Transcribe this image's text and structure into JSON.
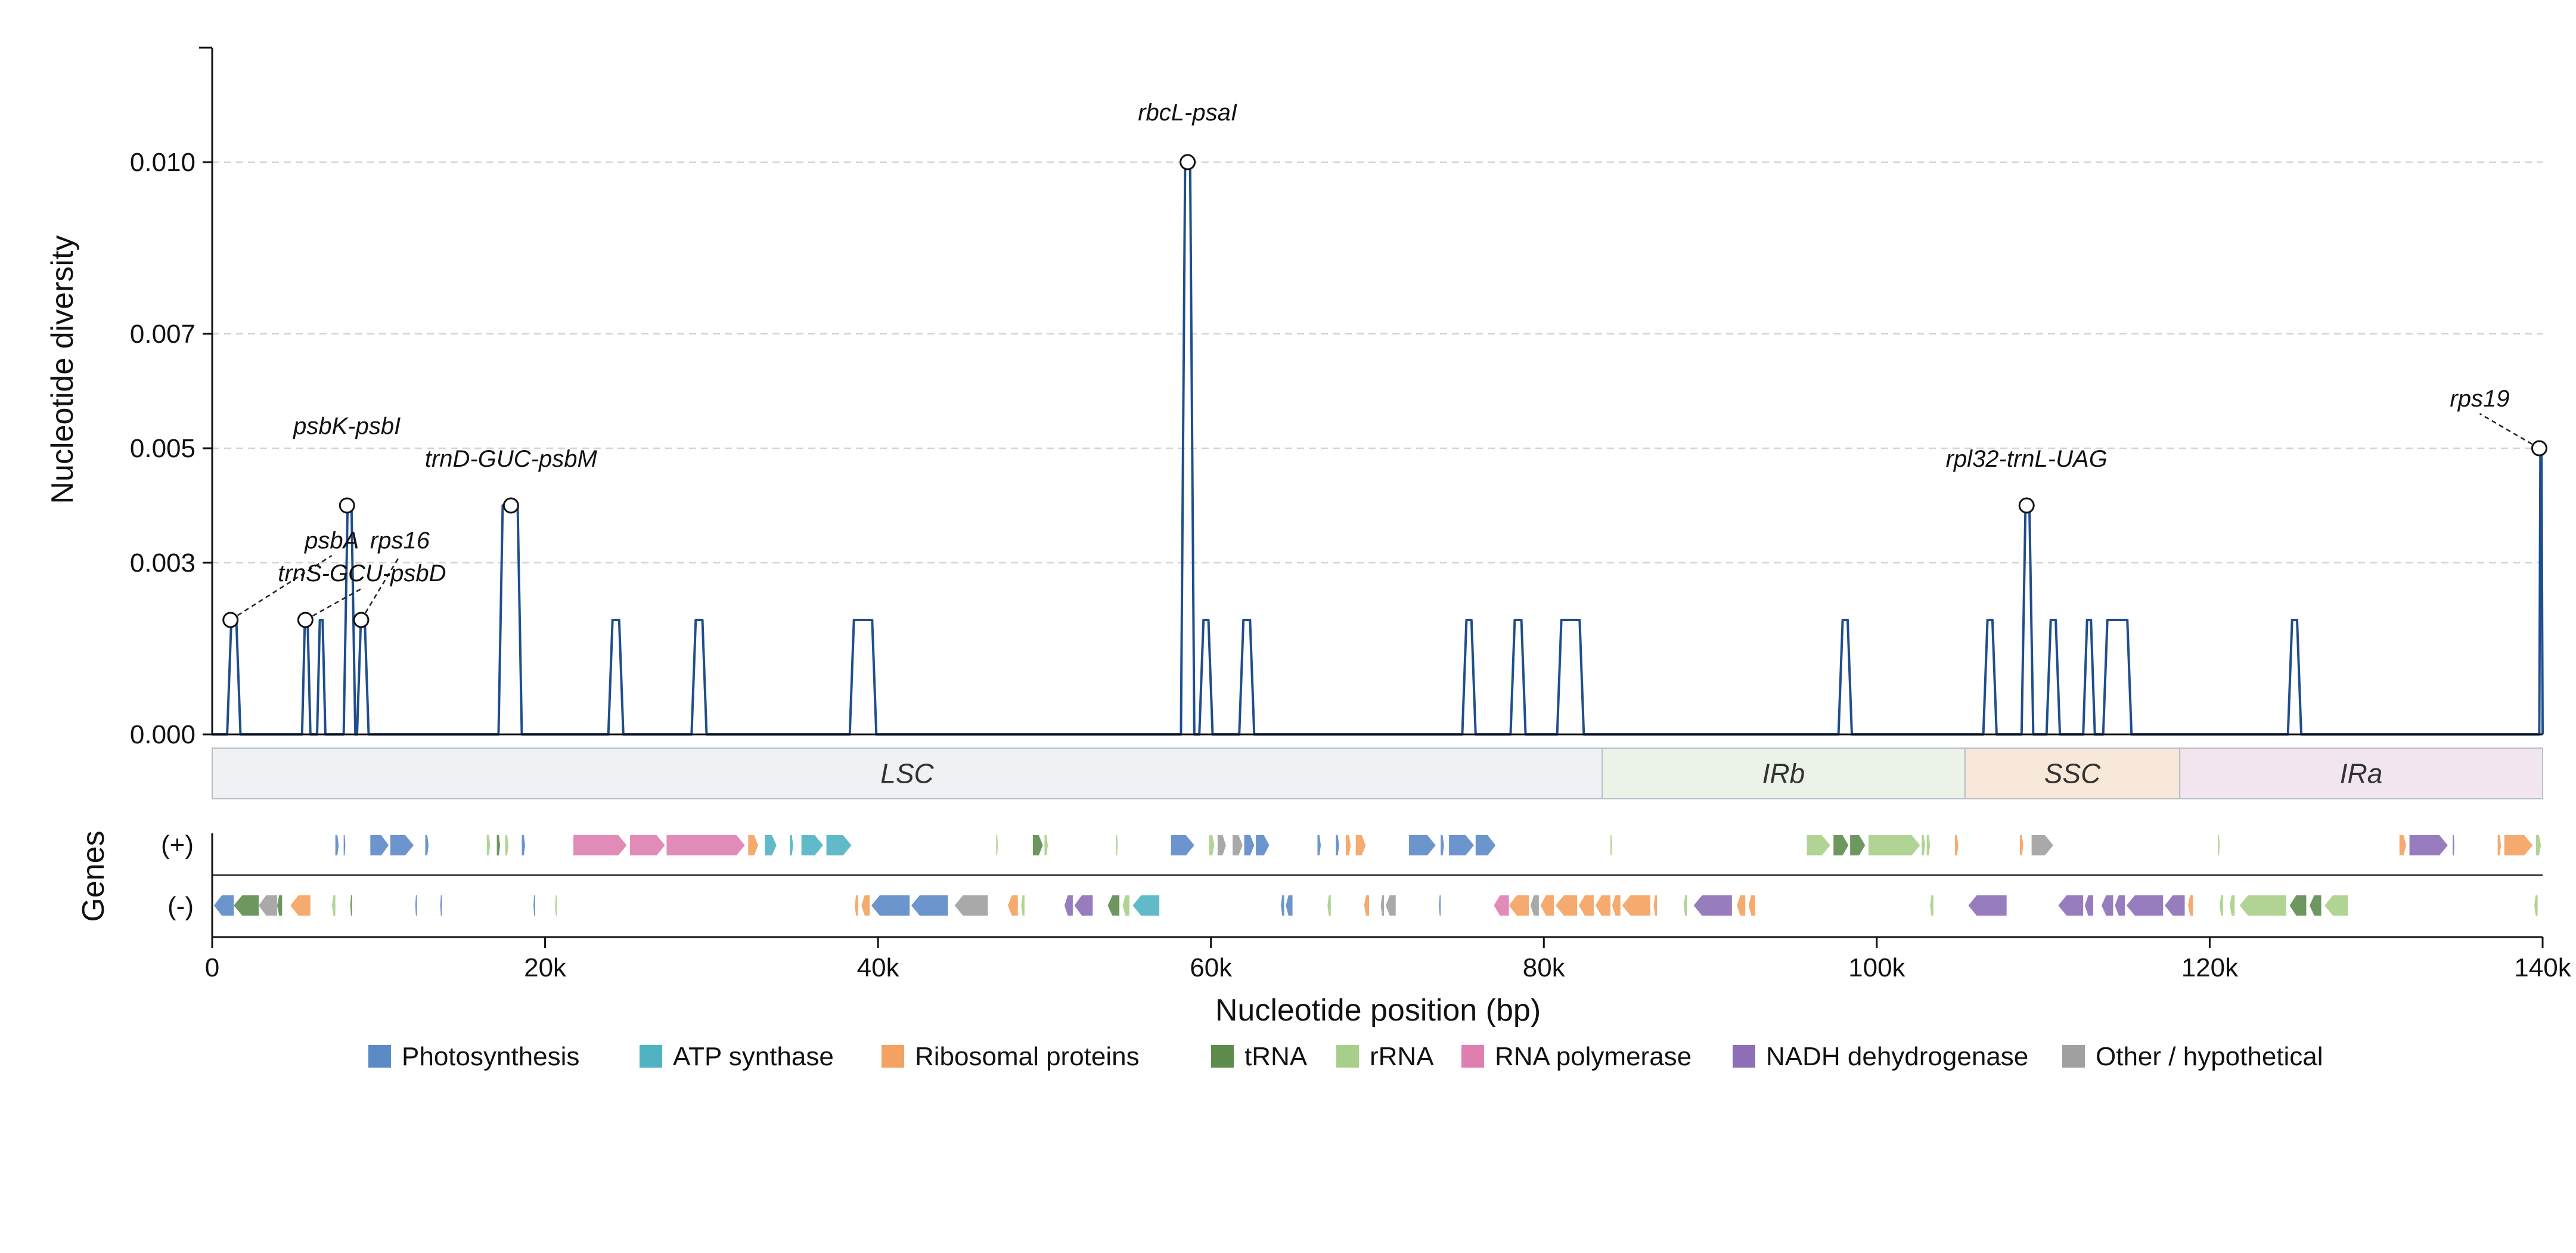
{
  "chart_data": {
    "type": "line",
    "title": "",
    "ylabel": "Nucleotide diversity",
    "xlabel": "Nucleotide position (bp)",
    "genes_label": "Genes",
    "strand_plus_label": "(+)",
    "strand_minus_label": "(-)",
    "xlim": [
      0,
      140000
    ],
    "ylim": [
      0,
      0.012
    ],
    "yticks": [
      {
        "value": 0.0,
        "label": "0.000"
      },
      {
        "value": 0.003,
        "label": "0.003"
      },
      {
        "value": 0.005,
        "label": "0.005"
      },
      {
        "value": 0.007,
        "label": "0.007"
      },
      {
        "value": 0.01,
        "label": "0.010"
      }
    ],
    "xticks": [
      {
        "value": 0,
        "label": "0"
      },
      {
        "value": 20000,
        "label": "20k"
      },
      {
        "value": 40000,
        "label": "40k"
      },
      {
        "value": 60000,
        "label": "60k"
      },
      {
        "value": 80000,
        "label": "80k"
      },
      {
        "value": 100000,
        "label": "100k"
      },
      {
        "value": 120000,
        "label": "120k"
      },
      {
        "value": 140000,
        "label": "140k"
      }
    ],
    "grid": "horizontal dashed",
    "line_color": "#1f4e8c",
    "peaks": [
      {
        "start": 900,
        "end": 1700,
        "value": 0.002
      },
      {
        "start": 5400,
        "end": 5900,
        "value": 0.002
      },
      {
        "start": 6300,
        "end": 6800,
        "value": 0.002
      },
      {
        "start": 7900,
        "end": 8600,
        "value": 0.004
      },
      {
        "start": 8700,
        "end": 9400,
        "value": 0.002
      },
      {
        "start": 17200,
        "end": 18600,
        "value": 0.004
      },
      {
        "start": 23800,
        "end": 24700,
        "value": 0.002
      },
      {
        "start": 28800,
        "end": 29700,
        "value": 0.002
      },
      {
        "start": 38300,
        "end": 39900,
        "value": 0.002
      },
      {
        "start": 58200,
        "end": 59000,
        "value": 0.01
      },
      {
        "start": 59300,
        "end": 60100,
        "value": 0.002
      },
      {
        "start": 61700,
        "end": 62600,
        "value": 0.002
      },
      {
        "start": 75100,
        "end": 75900,
        "value": 0.002
      },
      {
        "start": 78000,
        "end": 78900,
        "value": 0.002
      },
      {
        "start": 80800,
        "end": 82400,
        "value": 0.002
      },
      {
        "start": 97700,
        "end": 98500,
        "value": 0.002
      },
      {
        "start": 106400,
        "end": 107200,
        "value": 0.002
      },
      {
        "start": 108700,
        "end": 109400,
        "value": 0.004
      },
      {
        "start": 110200,
        "end": 111000,
        "value": 0.002
      },
      {
        "start": 112400,
        "end": 113100,
        "value": 0.002
      },
      {
        "start": 113600,
        "end": 115300,
        "value": 0.002
      },
      {
        "start": 124700,
        "end": 125500,
        "value": 0.002
      },
      {
        "start": 139800,
        "end": 140000,
        "value": 0.005
      }
    ],
    "annotations": [
      {
        "label": "rbcL-psaI",
        "x": 58600,
        "y": 0.01,
        "dx": 0,
        "dy": -70
      },
      {
        "label": "psbK-psbI",
        "x": 8100,
        "y": 0.004,
        "dx": 0,
        "dy": -120
      },
      {
        "label": "trnD-GUC-psbM",
        "x": 17950,
        "y": 0.004,
        "dx": 0,
        "dy": -65
      },
      {
        "label": "psbA",
        "x": 1100,
        "y": 0.002,
        "dx": 170,
        "dy": -120,
        "leader": true
      },
      {
        "label": "trnS-GCU-psbD",
        "x": 5600,
        "y": 0.002,
        "dx": 95,
        "dy": -65,
        "leader": true
      },
      {
        "label": "rps16",
        "x": 8950,
        "y": 0.002,
        "dx": 65,
        "dy": -120,
        "leader": true
      },
      {
        "label": "rpl32-trnL-UAG",
        "x": 109000,
        "y": 0.004,
        "dx": 0,
        "dy": -65
      },
      {
        "label": "rps19",
        "x": 139800,
        "y": 0.005,
        "dx": -100,
        "dy": -70,
        "leader": true
      }
    ],
    "regions": [
      {
        "name": "LSC",
        "start": 0,
        "end": 83500,
        "color": "#eef2f5"
      },
      {
        "name": "IRb",
        "start": 83500,
        "end": 105300,
        "color": "#ebf2e8"
      },
      {
        "name": "SSC",
        "start": 105300,
        "end": 118200,
        "color": "#f8e8da"
      },
      {
        "name": "IRa",
        "start": 118200,
        "end": 140000,
        "color": "#f1e5f0"
      }
    ],
    "legend": [
      {
        "name": "Photosynthesis",
        "color": "#5b8ac6"
      },
      {
        "name": "ATP synthase",
        "color": "#4fb3c2"
      },
      {
        "name": "Ribosomal proteins",
        "color": "#f4a261"
      },
      {
        "name": "tRNA",
        "color": "#5e8c4f"
      },
      {
        "name": "rRNA",
        "color": "#a8cf8a"
      },
      {
        "name": "RNA polymerase",
        "color": "#de7fb0"
      },
      {
        "name": "NADH dehydrogenase",
        "color": "#8c6fb6"
      },
      {
        "name": "Other / hypothetical",
        "color": "#a0a0a0"
      }
    ],
    "genes": [
      {
        "strand": "+",
        "start": 7400,
        "end": 7600,
        "cat": "Photosynthesis"
      },
      {
        "strand": "+",
        "start": 7900,
        "end": 8000,
        "cat": "Photosynthesis"
      },
      {
        "strand": "+",
        "start": 9500,
        "end": 10600,
        "cat": "Photosynthesis"
      },
      {
        "strand": "+",
        "start": 10700,
        "end": 12100,
        "cat": "Photosynthesis"
      },
      {
        "strand": "+",
        "start": 12800,
        "end": 13000,
        "cat": "Photosynthesis"
      },
      {
        "strand": "+",
        "start": 16500,
        "end": 16700,
        "cat": "rRNA"
      },
      {
        "strand": "+",
        "start": 17100,
        "end": 17300,
        "cat": "tRNA"
      },
      {
        "strand": "+",
        "start": 17600,
        "end": 17800,
        "cat": "rRNA"
      },
      {
        "strand": "+",
        "start": 18600,
        "end": 18800,
        "cat": "Photosynthesis"
      },
      {
        "strand": "+",
        "start": 21700,
        "end": 24900,
        "cat": "RNA polymerase"
      },
      {
        "strand": "+",
        "start": 25100,
        "end": 27200,
        "cat": "RNA polymerase"
      },
      {
        "strand": "+",
        "start": 27300,
        "end": 32000,
        "cat": "RNA polymerase"
      },
      {
        "strand": "+",
        "start": 32200,
        "end": 32800,
        "cat": "Ribosomal proteins"
      },
      {
        "strand": "+",
        "start": 33200,
        "end": 33900,
        "cat": "ATP synthase"
      },
      {
        "strand": "+",
        "start": 34700,
        "end": 34900,
        "cat": "ATP synthase"
      },
      {
        "strand": "+",
        "start": 35400,
        "end": 36700,
        "cat": "ATP synthase"
      },
      {
        "strand": "+",
        "start": 36900,
        "end": 38400,
        "cat": "ATP synthase"
      },
      {
        "strand": "+",
        "start": 47100,
        "end": 47200,
        "cat": "rRNA"
      },
      {
        "strand": "+",
        "start": 49300,
        "end": 49900,
        "cat": "tRNA"
      },
      {
        "strand": "+",
        "start": 50000,
        "end": 50200,
        "cat": "rRNA"
      },
      {
        "strand": "+",
        "start": 54300,
        "end": 54400,
        "cat": "rRNA"
      },
      {
        "strand": "+",
        "start": 57600,
        "end": 59000,
        "cat": "Photosynthesis"
      },
      {
        "strand": "+",
        "start": 59900,
        "end": 60200,
        "cat": "rRNA"
      },
      {
        "strand": "+",
        "start": 60400,
        "end": 60900,
        "cat": "Other / hypothetical"
      },
      {
        "strand": "+",
        "start": 61300,
        "end": 61900,
        "cat": "Other / hypothetical"
      },
      {
        "strand": "+",
        "start": 62000,
        "end": 62600,
        "cat": "Photosynthesis"
      },
      {
        "strand": "+",
        "start": 62700,
        "end": 63500,
        "cat": "Photosynthesis"
      },
      {
        "strand": "+",
        "start": 66400,
        "end": 66600,
        "cat": "Photosynthesis"
      },
      {
        "strand": "+",
        "start": 67500,
        "end": 67700,
        "cat": "Photosynthesis"
      },
      {
        "strand": "+",
        "start": 68100,
        "end": 68400,
        "cat": "Ribosomal proteins"
      },
      {
        "strand": "+",
        "start": 68700,
        "end": 69300,
        "cat": "Ribosomal proteins"
      },
      {
        "strand": "+",
        "start": 71900,
        "end": 73500,
        "cat": "Photosynthesis"
      },
      {
        "strand": "+",
        "start": 73800,
        "end": 74000,
        "cat": "Photosynthesis"
      },
      {
        "strand": "+",
        "start": 74300,
        "end": 75800,
        "cat": "Photosynthesis"
      },
      {
        "strand": "+",
        "start": 75900,
        "end": 77100,
        "cat": "Photosynthesis"
      },
      {
        "strand": "+",
        "start": 84000,
        "end": 84100,
        "cat": "rRNA"
      },
      {
        "strand": "+",
        "start": 95800,
        "end": 97200,
        "cat": "rRNA"
      },
      {
        "strand": "+",
        "start": 97400,
        "end": 98300,
        "cat": "tRNA"
      },
      {
        "strand": "+",
        "start": 98400,
        "end": 99300,
        "cat": "tRNA"
      },
      {
        "strand": "+",
        "start": 99500,
        "end": 102600,
        "cat": "rRNA"
      },
      {
        "strand": "+",
        "start": 102700,
        "end": 102900,
        "cat": "rRNA"
      },
      {
        "strand": "+",
        "start": 103000,
        "end": 103200,
        "cat": "rRNA"
      },
      {
        "strand": "+",
        "start": 104700,
        "end": 104900,
        "cat": "Ribosomal proteins"
      },
      {
        "strand": "+",
        "start": 108600,
        "end": 108800,
        "cat": "Ribosomal proteins"
      },
      {
        "strand": "+",
        "start": 109300,
        "end": 110600,
        "cat": "Other / hypothetical"
      },
      {
        "strand": "+",
        "start": 120500,
        "end": 120600,
        "cat": "rRNA"
      },
      {
        "strand": "+",
        "start": 131400,
        "end": 131800,
        "cat": "Ribosomal proteins"
      },
      {
        "strand": "+",
        "start": 132000,
        "end": 134300,
        "cat": "NADH dehydrogenase"
      },
      {
        "strand": "+",
        "start": 134600,
        "end": 134700,
        "cat": "NADH dehydrogenase"
      },
      {
        "strand": "+",
        "start": 137300,
        "end": 137500,
        "cat": "Ribosomal proteins"
      },
      {
        "strand": "+",
        "start": 137700,
        "end": 139400,
        "cat": "Ribosomal proteins"
      },
      {
        "strand": "+",
        "start": 139600,
        "end": 139900,
        "cat": "rRNA"
      },
      {
        "strand": "-",
        "start": 100,
        "end": 1300,
        "cat": "Photosynthesis"
      },
      {
        "strand": "-",
        "start": 1300,
        "end": 2800,
        "cat": "tRNA"
      },
      {
        "strand": "-",
        "start": 2800,
        "end": 3900,
        "cat": "Other / hypothetical"
      },
      {
        "strand": "-",
        "start": 3900,
        "end": 4200,
        "cat": "tRNA"
      },
      {
        "strand": "-",
        "start": 4700,
        "end": 5900,
        "cat": "Ribosomal proteins"
      },
      {
        "strand": "-",
        "start": 7200,
        "end": 7400,
        "cat": "rRNA"
      },
      {
        "strand": "-",
        "start": 8300,
        "end": 8400,
        "cat": "tRNA"
      },
      {
        "strand": "-",
        "start": 12200,
        "end": 12300,
        "cat": "Photosynthesis"
      },
      {
        "strand": "-",
        "start": 13700,
        "end": 13800,
        "cat": "Photosynthesis"
      },
      {
        "strand": "-",
        "start": 19300,
        "end": 19400,
        "cat": "Photosynthesis"
      },
      {
        "strand": "-",
        "start": 20600,
        "end": 20700,
        "cat": "rRNA"
      },
      {
        "strand": "-",
        "start": 38600,
        "end": 38800,
        "cat": "Ribosomal proteins"
      },
      {
        "strand": "-",
        "start": 39000,
        "end": 39500,
        "cat": "Ribosomal proteins"
      },
      {
        "strand": "-",
        "start": 39600,
        "end": 41900,
        "cat": "Photosynthesis"
      },
      {
        "strand": "-",
        "start": 42000,
        "end": 44200,
        "cat": "Photosynthesis"
      },
      {
        "strand": "-",
        "start": 44600,
        "end": 46600,
        "cat": "Other / hypothetical"
      },
      {
        "strand": "-",
        "start": 47800,
        "end": 48400,
        "cat": "Ribosomal proteins"
      },
      {
        "strand": "-",
        "start": 48600,
        "end": 48800,
        "cat": "rRNA"
      },
      {
        "strand": "-",
        "start": 51200,
        "end": 51700,
        "cat": "NADH dehydrogenase"
      },
      {
        "strand": "-",
        "start": 51800,
        "end": 52900,
        "cat": "NADH dehydrogenase"
      },
      {
        "strand": "-",
        "start": 53800,
        "end": 54500,
        "cat": "tRNA"
      },
      {
        "strand": "-",
        "start": 54700,
        "end": 55100,
        "cat": "rRNA"
      },
      {
        "strand": "-",
        "start": 55300,
        "end": 56900,
        "cat": "ATP synthase"
      },
      {
        "strand": "-",
        "start": 64200,
        "end": 64400,
        "cat": "Photosynthesis"
      },
      {
        "strand": "-",
        "start": 64500,
        "end": 64900,
        "cat": "Photosynthesis"
      },
      {
        "strand": "-",
        "start": 67000,
        "end": 67200,
        "cat": "rRNA"
      },
      {
        "strand": "-",
        "start": 69200,
        "end": 69500,
        "cat": "Ribosomal proteins"
      },
      {
        "strand": "-",
        "start": 70200,
        "end": 70400,
        "cat": "Other / hypothetical"
      },
      {
        "strand": "-",
        "start": 70500,
        "end": 71100,
        "cat": "Other / hypothetical"
      },
      {
        "strand": "-",
        "start": 73700,
        "end": 73800,
        "cat": "Photosynthesis"
      },
      {
        "strand": "-",
        "start": 77000,
        "end": 77900,
        "cat": "RNA polymerase"
      },
      {
        "strand": "-",
        "start": 77900,
        "end": 79100,
        "cat": "Ribosomal proteins"
      },
      {
        "strand": "-",
        "start": 79200,
        "end": 79700,
        "cat": "Other / hypothetical"
      },
      {
        "strand": "-",
        "start": 79800,
        "end": 80600,
        "cat": "Ribosomal proteins"
      },
      {
        "strand": "-",
        "start": 80700,
        "end": 82000,
        "cat": "Ribosomal proteins"
      },
      {
        "strand": "-",
        "start": 82100,
        "end": 83000,
        "cat": "Ribosomal proteins"
      },
      {
        "strand": "-",
        "start": 83100,
        "end": 84000,
        "cat": "Ribosomal proteins"
      },
      {
        "strand": "-",
        "start": 84100,
        "end": 84600,
        "cat": "Ribosomal proteins"
      },
      {
        "strand": "-",
        "start": 84700,
        "end": 86400,
        "cat": "Ribosomal proteins"
      },
      {
        "strand": "-",
        "start": 86600,
        "end": 86800,
        "cat": "Ribosomal proteins"
      },
      {
        "strand": "-",
        "start": 88400,
        "end": 88600,
        "cat": "rRNA"
      },
      {
        "strand": "-",
        "start": 89000,
        "end": 91300,
        "cat": "NADH dehydrogenase"
      },
      {
        "strand": "-",
        "start": 91600,
        "end": 92100,
        "cat": "Ribosomal proteins"
      },
      {
        "strand": "-",
        "start": 92300,
        "end": 92700,
        "cat": "Ribosomal proteins"
      },
      {
        "strand": "-",
        "start": 103200,
        "end": 103400,
        "cat": "rRNA"
      },
      {
        "strand": "-",
        "start": 105500,
        "end": 107800,
        "cat": "NADH dehydrogenase"
      },
      {
        "strand": "-",
        "start": 110900,
        "end": 112400,
        "cat": "NADH dehydrogenase"
      },
      {
        "strand": "-",
        "start": 112500,
        "end": 113000,
        "cat": "NADH dehydrogenase"
      },
      {
        "strand": "-",
        "start": 113500,
        "end": 114200,
        "cat": "NADH dehydrogenase"
      },
      {
        "strand": "-",
        "start": 114300,
        "end": 114900,
        "cat": "NADH dehydrogenase"
      },
      {
        "strand": "-",
        "start": 115000,
        "end": 117200,
        "cat": "NADH dehydrogenase"
      },
      {
        "strand": "-",
        "start": 117300,
        "end": 118500,
        "cat": "NADH dehydrogenase"
      },
      {
        "strand": "-",
        "start": 118700,
        "end": 119000,
        "cat": "Ribosomal proteins"
      },
      {
        "strand": "-",
        "start": 120600,
        "end": 120800,
        "cat": "rRNA"
      },
      {
        "strand": "-",
        "start": 121200,
        "end": 121500,
        "cat": "rRNA"
      },
      {
        "strand": "-",
        "start": 121800,
        "end": 124600,
        "cat": "rRNA"
      },
      {
        "strand": "-",
        "start": 124800,
        "end": 125800,
        "cat": "tRNA"
      },
      {
        "strand": "-",
        "start": 126000,
        "end": 126700,
        "cat": "tRNA"
      },
      {
        "strand": "-",
        "start": 126900,
        "end": 128300,
        "cat": "rRNA"
      },
      {
        "strand": "-",
        "start": 139500,
        "end": 139700,
        "cat": "rRNA"
      }
    ]
  }
}
